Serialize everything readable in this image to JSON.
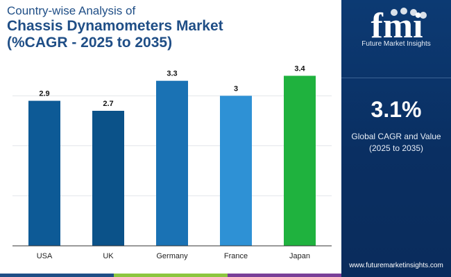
{
  "header": {
    "title_line1": "Country-wise Analysis of",
    "title_line2": "Chassis Dynamometers Market",
    "title_line3": "(%CAGR - 2025 to 2035)"
  },
  "sidebar": {
    "logo_text": "fmi",
    "logo_tagline": "Future Market Insights",
    "cagr_value": "3.1%",
    "cagr_label_line1": "Global CAGR and Value",
    "cagr_label_line2": "(2025 to 2035)",
    "website": "www.futuremarketinsights.com"
  },
  "colors": {
    "title": "#1f4e86",
    "sidebar_bg": "#0c3a73",
    "strip": [
      "#1f4e86",
      "#8cc63f",
      "#7a3f98"
    ]
  },
  "chart_data": {
    "type": "bar",
    "categories": [
      "USA",
      "UK",
      "Germany",
      "France",
      "Japan"
    ],
    "values": [
      2.9,
      2.7,
      3.3,
      3,
      3.4
    ],
    "value_labels": [
      "2.9",
      "2.7",
      "3.3",
      "3",
      "3.4"
    ],
    "bar_colors": [
      "#0d5a96",
      "#0b5289",
      "#1a72b4",
      "#2e91d5",
      "#1fb23e"
    ],
    "ylim": [
      0,
      3.6
    ],
    "grid": true,
    "gridline_values": [
      1,
      2,
      3
    ],
    "title": "",
    "xlabel": "",
    "ylabel": ""
  }
}
